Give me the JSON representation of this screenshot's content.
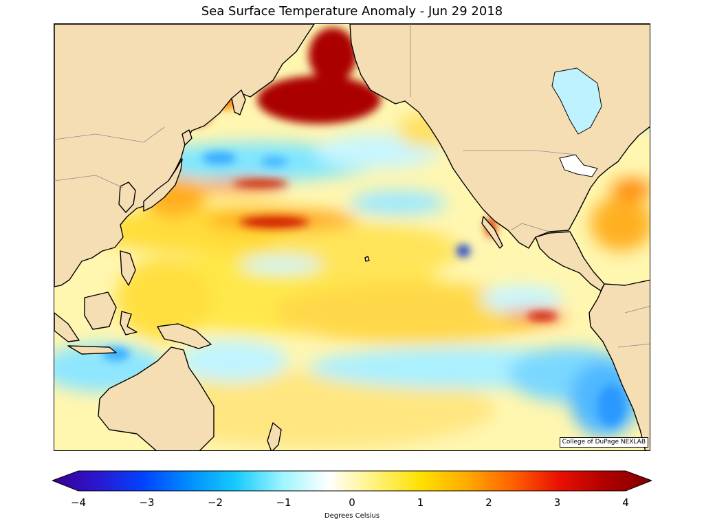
{
  "title": "Sea Surface Temperature Anomaly - Jun 29 2018",
  "credit": "College of DuPage NEXLAB",
  "colorbar": {
    "label": "Degrees Celsius",
    "min": -4,
    "max": 4,
    "ticks": [
      "−4",
      "−3",
      "−2",
      "−1",
      "0",
      "1",
      "2",
      "3",
      "4"
    ],
    "stops": [
      "#3a0090",
      "#2a18d0",
      "#0044ff",
      "#0090ff",
      "#18ccff",
      "#9ff5ff",
      "#ffffff",
      "#fff27a",
      "#ffe000",
      "#ffaa00",
      "#ff6000",
      "#e81000",
      "#b00000",
      "#800000"
    ]
  },
  "colors": {
    "land": "#f5deb3",
    "coast": "#000000",
    "warm_strong": "#aa0000",
    "warm": "#ffb000",
    "warm_light": "#ffe94a",
    "cool": "#6fe4ff",
    "cool_strong": "#1a7aff"
  }
}
